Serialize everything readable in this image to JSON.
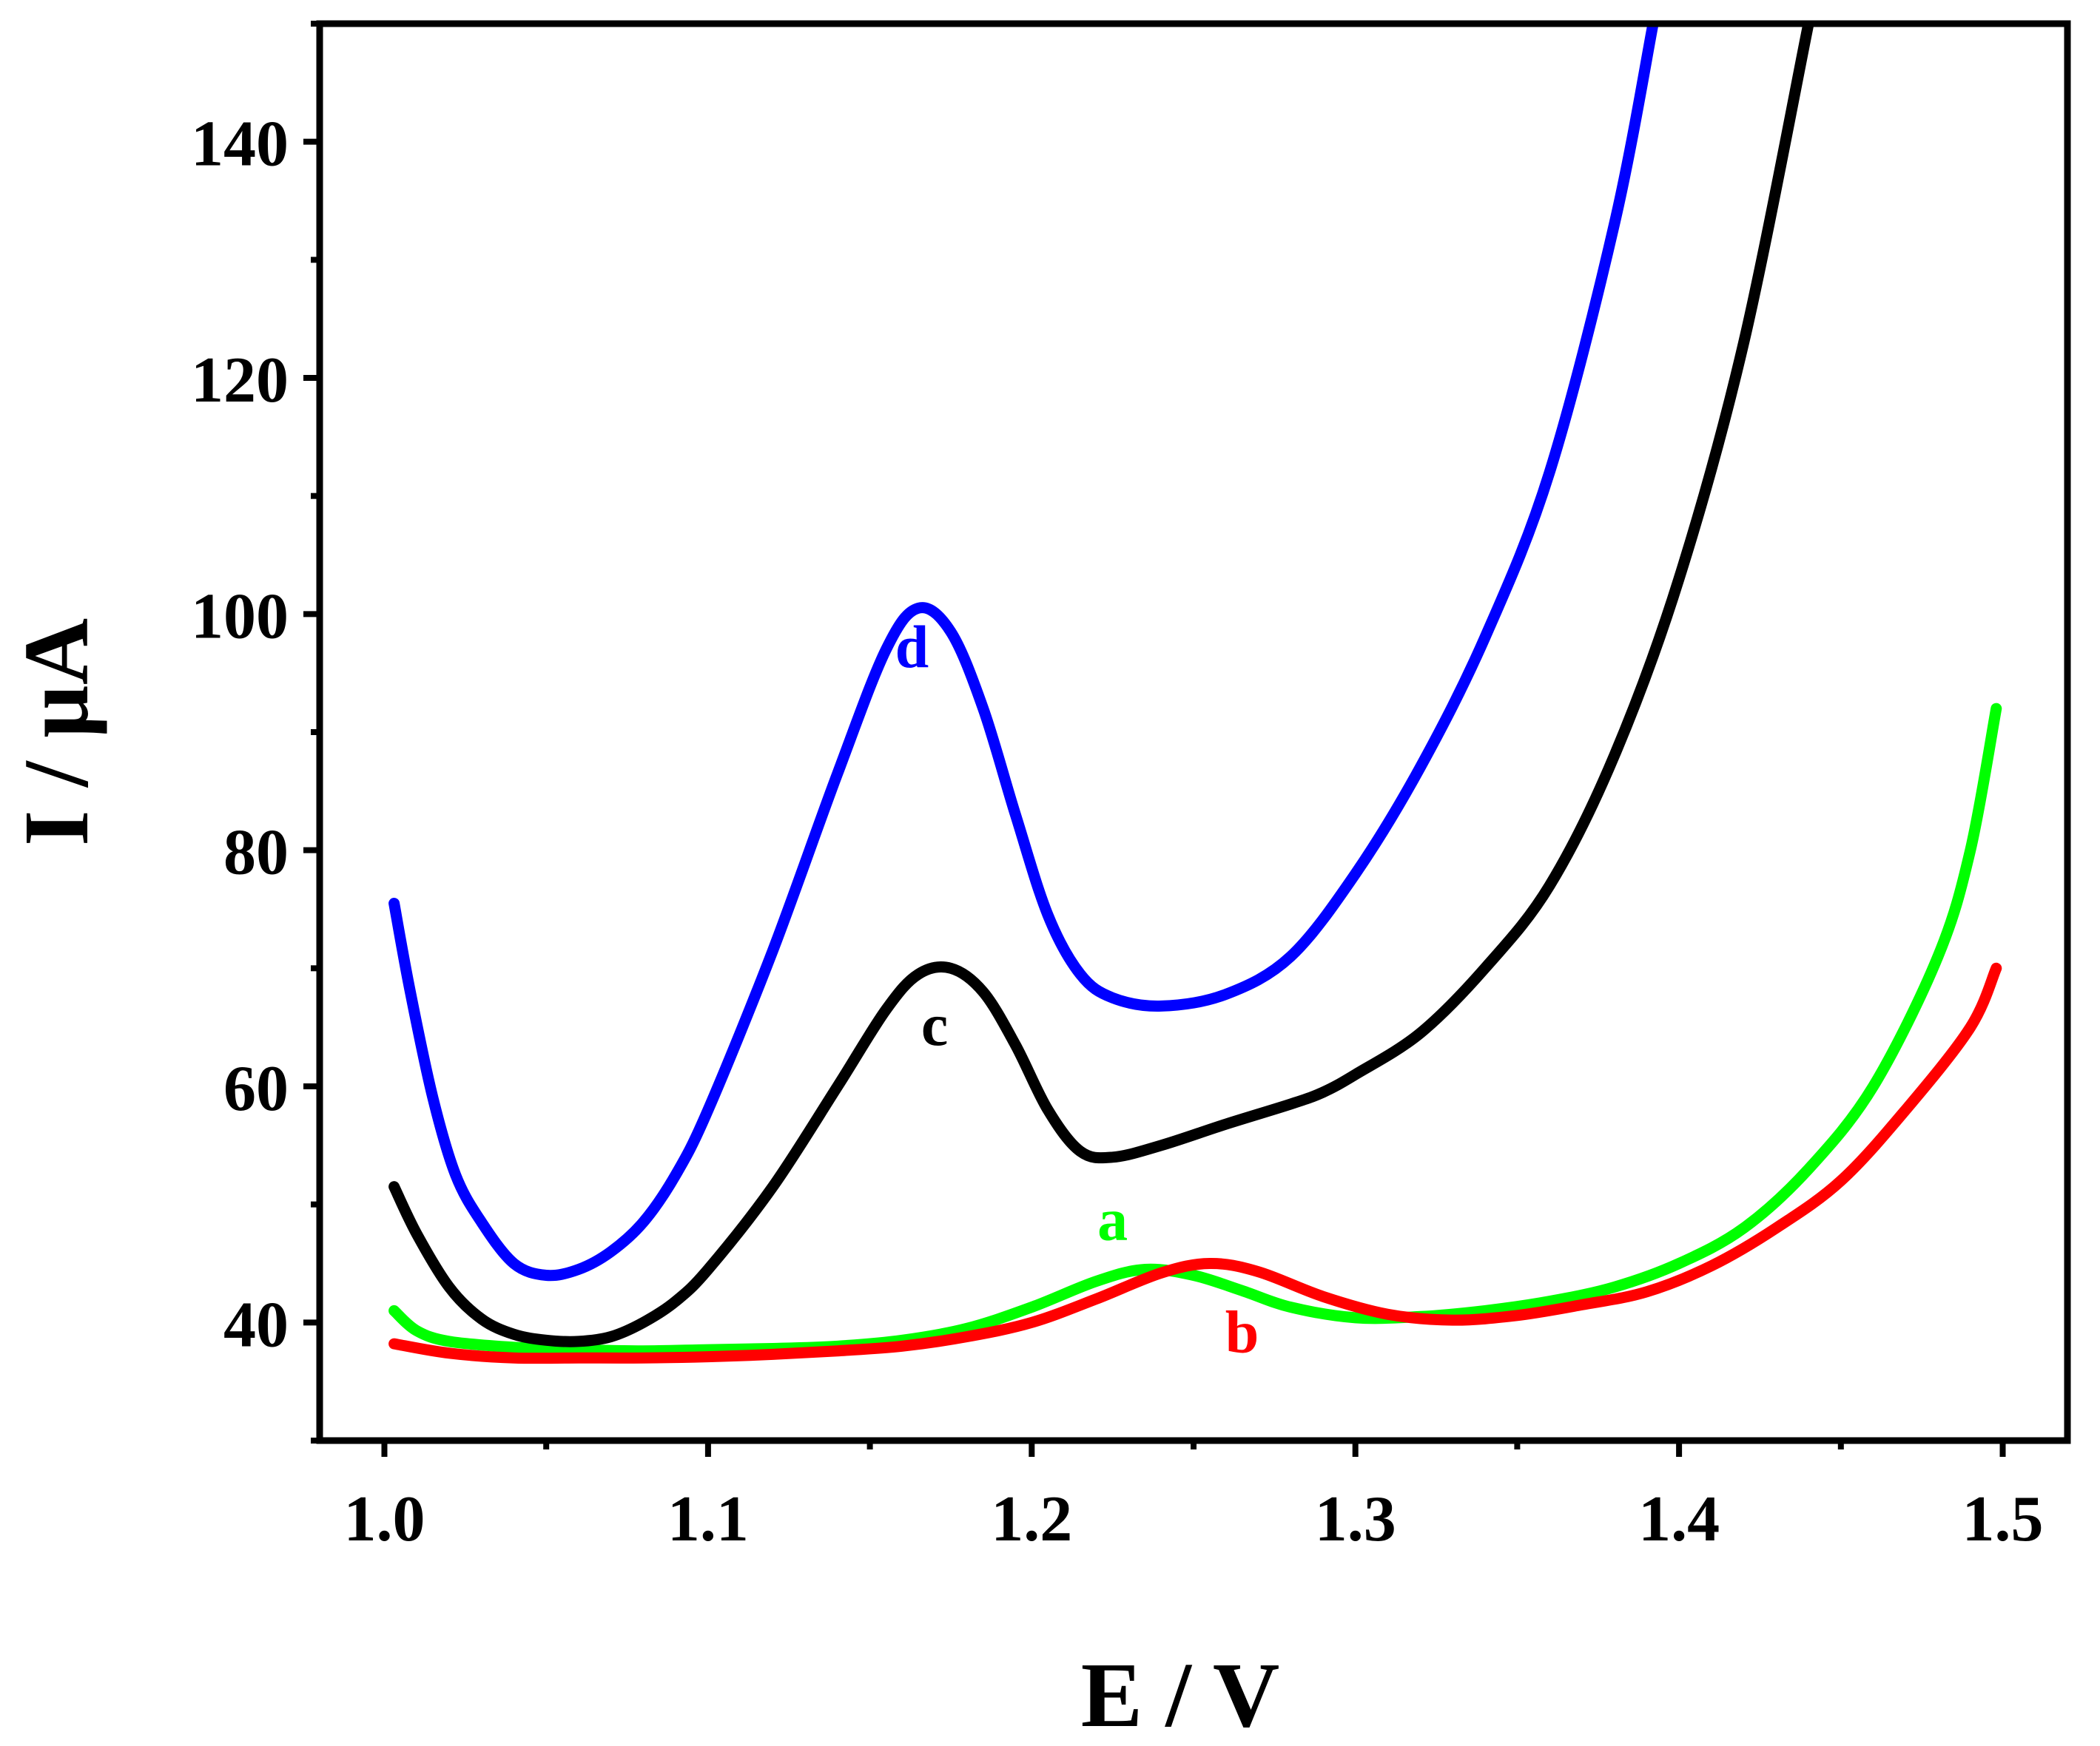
{
  "chart_data": {
    "type": "line",
    "title": "",
    "xlabel": "E / V",
    "ylabel": "I / µA",
    "xlim": [
      0.98,
      1.52
    ],
    "ylim": [
      30,
      150
    ],
    "x_ticks": [
      "1.0",
      "1.1",
      "1.2",
      "1.3",
      "1.4",
      "1.5"
    ],
    "y_ticks": [
      "40",
      "60",
      "80",
      "100",
      "120",
      "140"
    ],
    "grid": false,
    "legend": "none",
    "series": [
      {
        "name": "a",
        "color": "#00ff00",
        "label": "a",
        "label_at": [
          1.225,
          47
        ],
        "points": [
          [
            1.003,
            41
          ],
          [
            1.01,
            39.3
          ],
          [
            1.02,
            38.4
          ],
          [
            1.04,
            37.9
          ],
          [
            1.06,
            37.7
          ],
          [
            1.08,
            37.6
          ],
          [
            1.1,
            37.7
          ],
          [
            1.12,
            37.8
          ],
          [
            1.14,
            38.0
          ],
          [
            1.16,
            38.5
          ],
          [
            1.18,
            39.5
          ],
          [
            1.2,
            41.3
          ],
          [
            1.22,
            43.5
          ],
          [
            1.235,
            44.5
          ],
          [
            1.25,
            44.0
          ],
          [
            1.265,
            42.7
          ],
          [
            1.28,
            41.3
          ],
          [
            1.3,
            40.4
          ],
          [
            1.32,
            40.5
          ],
          [
            1.34,
            41.0
          ],
          [
            1.36,
            41.8
          ],
          [
            1.38,
            43.0
          ],
          [
            1.4,
            45.0
          ],
          [
            1.42,
            48.0
          ],
          [
            1.44,
            53.0
          ],
          [
            1.46,
            60.0
          ],
          [
            1.48,
            71.0
          ],
          [
            1.49,
            80.0
          ],
          [
            1.498,
            92.0
          ]
        ]
      },
      {
        "name": "b",
        "color": "#ff0000",
        "label": "b",
        "label_at": [
          1.265,
          37.5
        ],
        "points": [
          [
            1.003,
            38.2
          ],
          [
            1.02,
            37.4
          ],
          [
            1.04,
            37.0
          ],
          [
            1.06,
            37.0
          ],
          [
            1.08,
            37.0
          ],
          [
            1.1,
            37.1
          ],
          [
            1.12,
            37.3
          ],
          [
            1.14,
            37.6
          ],
          [
            1.16,
            38.0
          ],
          [
            1.18,
            38.8
          ],
          [
            1.2,
            40.0
          ],
          [
            1.22,
            42.0
          ],
          [
            1.24,
            44.2
          ],
          [
            1.255,
            45.0
          ],
          [
            1.27,
            44.3
          ],
          [
            1.29,
            42.2
          ],
          [
            1.31,
            40.7
          ],
          [
            1.33,
            40.2
          ],
          [
            1.35,
            40.6
          ],
          [
            1.37,
            41.5
          ],
          [
            1.39,
            42.6
          ],
          [
            1.41,
            44.8
          ],
          [
            1.43,
            48.0
          ],
          [
            1.45,
            52.0
          ],
          [
            1.47,
            58.0
          ],
          [
            1.49,
            65.0
          ],
          [
            1.498,
            70.0
          ]
        ]
      },
      {
        "name": "c",
        "color": "#000000",
        "label": "c",
        "label_at": [
          1.17,
          63.5
        ],
        "points": [
          [
            1.003,
            51.5
          ],
          [
            1.01,
            47.5
          ],
          [
            1.02,
            43.0
          ],
          [
            1.03,
            40.3
          ],
          [
            1.04,
            39.0
          ],
          [
            1.05,
            38.5
          ],
          [
            1.06,
            38.4
          ],
          [
            1.07,
            38.8
          ],
          [
            1.08,
            40.0
          ],
          [
            1.09,
            41.8
          ],
          [
            1.1,
            44.5
          ],
          [
            1.12,
            51.5
          ],
          [
            1.14,
            60.0
          ],
          [
            1.155,
            66.5
          ],
          [
            1.165,
            69.5
          ],
          [
            1.175,
            70.0
          ],
          [
            1.185,
            68.0
          ],
          [
            1.195,
            63.5
          ],
          [
            1.205,
            58.0
          ],
          [
            1.215,
            54.5
          ],
          [
            1.225,
            54.0
          ],
          [
            1.24,
            55.0
          ],
          [
            1.26,
            56.8
          ],
          [
            1.28,
            58.5
          ],
          [
            1.29,
            59.5
          ],
          [
            1.3,
            61.0
          ],
          [
            1.32,
            64.5
          ],
          [
            1.34,
            70.0
          ],
          [
            1.36,
            77.0
          ],
          [
            1.38,
            88.0
          ],
          [
            1.4,
            103.0
          ],
          [
            1.42,
            123.0
          ],
          [
            1.44,
            150.0
          ]
        ]
      },
      {
        "name": "d",
        "color": "#0000ff",
        "label": "d",
        "label_at": [
          1.163,
          95.5
        ],
        "points": [
          [
            1.003,
            75.5
          ],
          [
            1.008,
            68.0
          ],
          [
            1.015,
            59.0
          ],
          [
            1.022,
            52.5
          ],
          [
            1.03,
            48.5
          ],
          [
            1.04,
            45.0
          ],
          [
            1.05,
            44.0
          ],
          [
            1.06,
            44.5
          ],
          [
            1.07,
            46.0
          ],
          [
            1.08,
            48.5
          ],
          [
            1.09,
            52.5
          ],
          [
            1.1,
            58.0
          ],
          [
            1.12,
            71.5
          ],
          [
            1.14,
            86.5
          ],
          [
            1.155,
            97.0
          ],
          [
            1.165,
            100.5
          ],
          [
            1.175,
            98.5
          ],
          [
            1.185,
            92.0
          ],
          [
            1.195,
            83.0
          ],
          [
            1.205,
            74.5
          ],
          [
            1.215,
            69.5
          ],
          [
            1.225,
            67.5
          ],
          [
            1.24,
            66.8
          ],
          [
            1.26,
            67.8
          ],
          [
            1.28,
            71.0
          ],
          [
            1.3,
            78.0
          ],
          [
            1.32,
            87.0
          ],
          [
            1.34,
            98.0
          ],
          [
            1.36,
            112.0
          ],
          [
            1.38,
            133.0
          ],
          [
            1.392,
            150.0
          ]
        ]
      }
    ]
  }
}
